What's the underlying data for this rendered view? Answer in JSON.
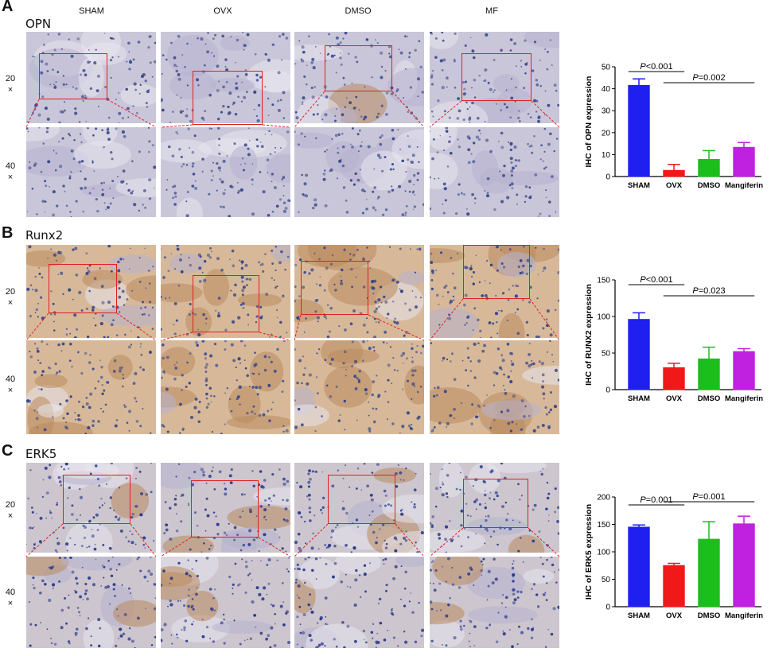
{
  "column_headers": [
    "SHAM",
    "OVX",
    "DMSO",
    "MF"
  ],
  "magnifications": [
    {
      "num": "20",
      "sym": "×"
    },
    {
      "num": "40",
      "sym": "×"
    }
  ],
  "panels": [
    {
      "letter": "A",
      "stain": "OPN",
      "tile_color": "#c9c6d9",
      "cell_color": "#3a4a8c",
      "brown": 0.05
    },
    {
      "letter": "B",
      "stain": "Runx2",
      "tile_color": "#d7b99a",
      "cell_color": "#34468a",
      "brown": 0.7
    },
    {
      "letter": "C",
      "stain": "ERK5",
      "tile_color": "#cdc6cf",
      "cell_color": "#2a3a8c",
      "brown": 0.25
    }
  ],
  "colors": {
    "sham": "#1f1ff0",
    "ovx": "#f01818",
    "dmso": "#1bbf1b",
    "mangiferin": "#c020e0",
    "box": "#e02020"
  },
  "chart_data": [
    {
      "type": "bar",
      "categories": [
        "SHAM",
        "OVX",
        "DMSO",
        "Mangiferin"
      ],
      "values": [
        41.5,
        2.8,
        7.8,
        13.3
      ],
      "errors": [
        3.0,
        2.7,
        4.0,
        2.2
      ],
      "ylabel": "IHC of OPN expression",
      "ylim": [
        0,
        50
      ],
      "yticks": [
        0,
        10,
        20,
        30,
        40,
        50
      ],
      "annotations": [
        {
          "text_p": "P",
          "text_rest": "<0.001",
          "from": 0,
          "to": 1
        },
        {
          "text_p": "P",
          "text_rest": "=0.002",
          "from": 1,
          "to": 3
        }
      ]
    },
    {
      "type": "bar",
      "categories": [
        "SHAM",
        "OVX",
        "DMSO",
        "Mangiferin"
      ],
      "values": [
        96,
        30,
        42,
        52
      ],
      "errors": [
        9,
        6,
        16,
        4
      ],
      "ylabel": "IHC of RUNX2 expression",
      "ylim": [
        0,
        150
      ],
      "yticks": [
        0,
        50,
        100,
        150
      ],
      "annotations": [
        {
          "text_p": "P",
          "text_rest": "<0.001",
          "from": 0,
          "to": 1
        },
        {
          "text_p": "P",
          "text_rest": "=0.023",
          "from": 1,
          "to": 3
        }
      ]
    },
    {
      "type": "bar",
      "categories": [
        "SHAM",
        "OVX",
        "DMSO",
        "Mangiferin"
      ],
      "values": [
        145,
        75,
        123,
        151
      ],
      "errors": [
        4,
        4,
        32,
        14
      ],
      "ylabel": "IHC of ERK5 expression",
      "ylim": [
        0,
        200
      ],
      "yticks": [
        0,
        50,
        100,
        150,
        200
      ],
      "annotations": [
        {
          "text_p": "P",
          "text_rest": "=0.001",
          "from": 0,
          "to": 1
        },
        {
          "text_p": "P",
          "text_rest": "=0.001",
          "from": 1,
          "to": 3
        }
      ]
    }
  ]
}
